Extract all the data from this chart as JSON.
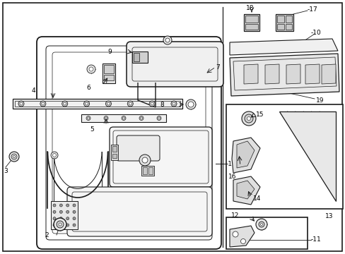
{
  "bg_color": "#ffffff",
  "lc": "#1a1a1a",
  "figsize": [
    4.89,
    3.6
  ],
  "dpi": 100
}
